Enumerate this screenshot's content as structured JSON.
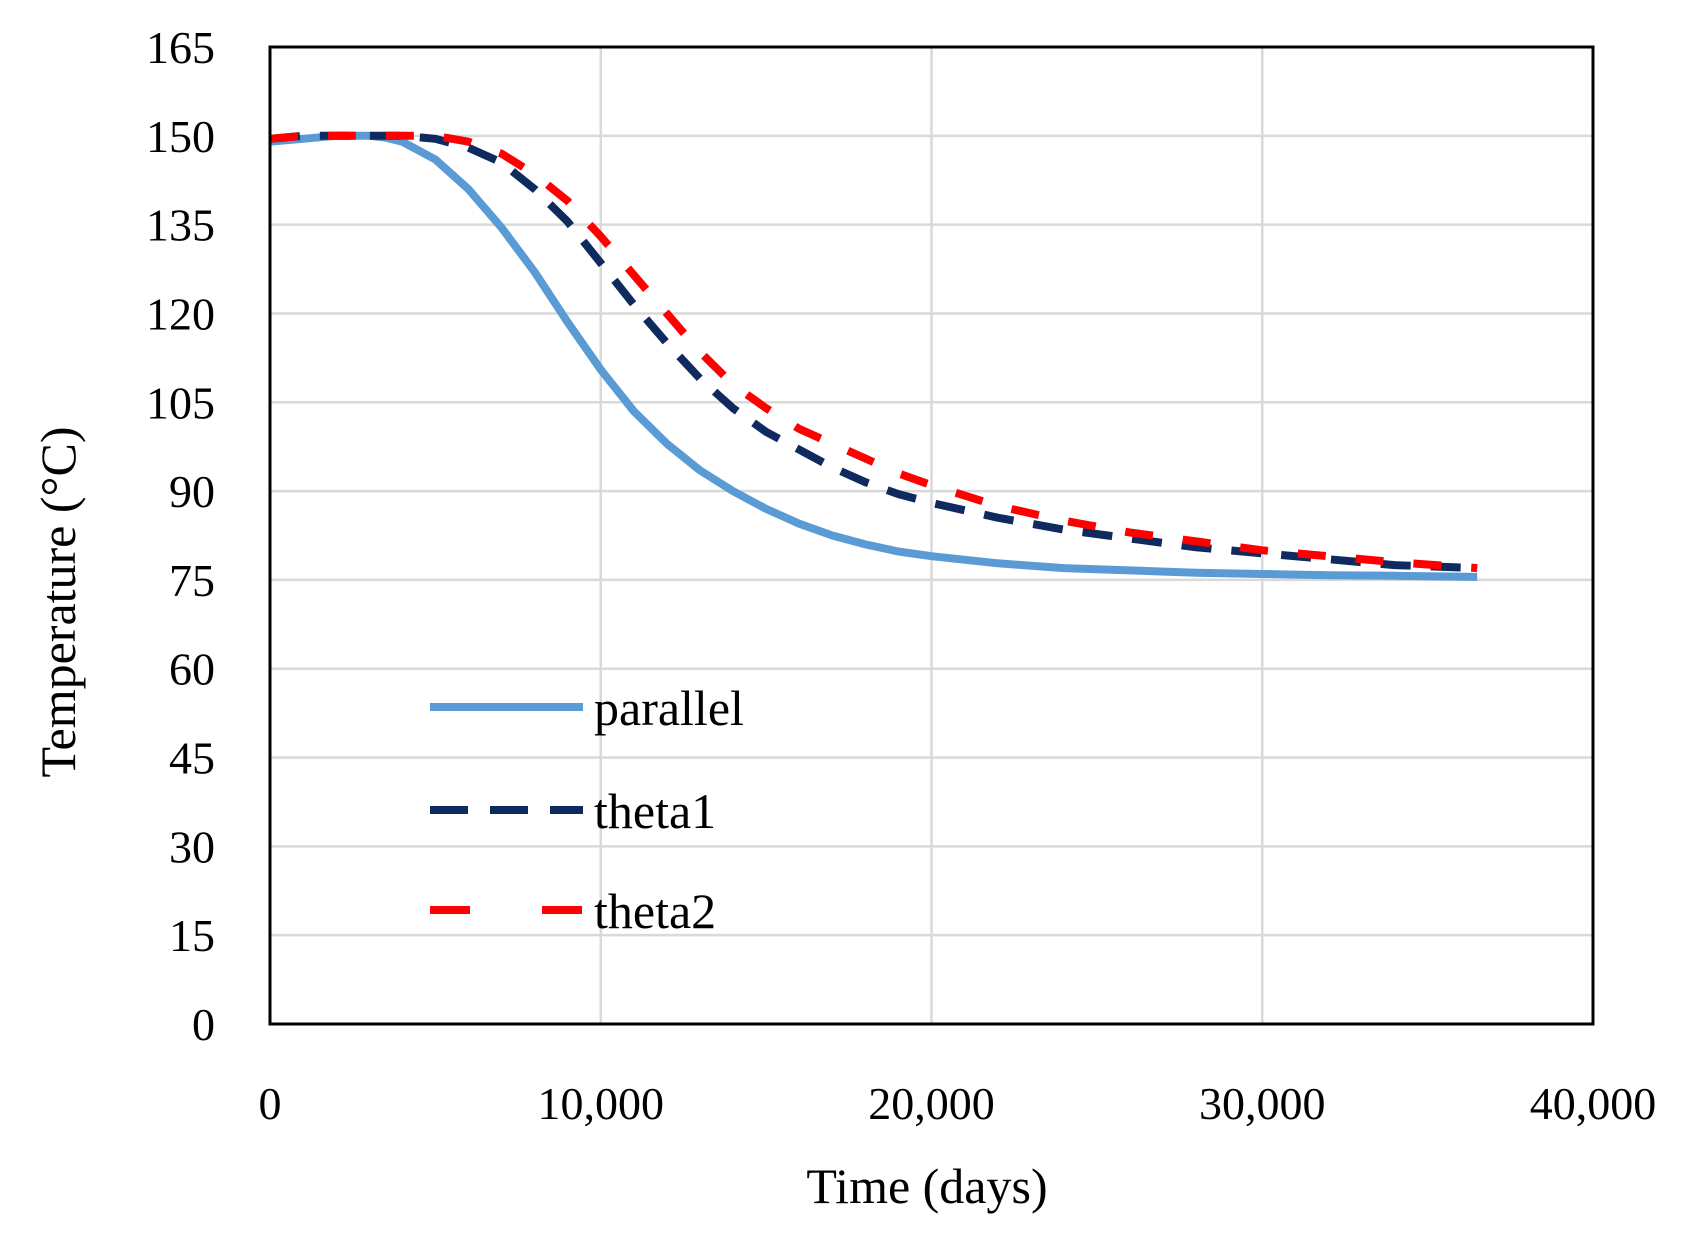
{
  "chart_data": {
    "type": "line",
    "title": "",
    "xlabel": "Time (days)",
    "ylabel": "Temperature (°C)",
    "xlim": [
      0,
      40000
    ],
    "ylim": [
      0,
      165
    ],
    "xticks": [
      0,
      10000,
      20000,
      30000,
      40000
    ],
    "xtick_labels": [
      "0",
      "10,000",
      "20,000",
      "30,000",
      "40,000"
    ],
    "yticks": [
      0,
      15,
      30,
      45,
      60,
      75,
      90,
      105,
      120,
      135,
      150,
      165
    ],
    "ytick_labels": [
      "0",
      "15",
      "30",
      "45",
      "60",
      "75",
      "90",
      "105",
      "120",
      "135",
      "150",
      "165"
    ],
    "grid": true,
    "legend_position": "lower-left",
    "series": [
      {
        "name": "parallel",
        "color": "#5b9bd5",
        "style": "solid",
        "x": [
          0,
          1000,
          2000,
          3000,
          3500,
          4000,
          5000,
          6000,
          7000,
          8000,
          9000,
          10000,
          11000,
          12000,
          13000,
          14000,
          15000,
          16000,
          17000,
          18000,
          19000,
          20000,
          22000,
          24000,
          26000,
          28000,
          30000,
          32000,
          34000,
          36500
        ],
        "y": [
          149,
          149.5,
          150,
          150,
          149.7,
          149,
          146,
          141,
          134.5,
          127,
          118.5,
          110.5,
          103.5,
          98,
          93.5,
          90,
          87,
          84.5,
          82.5,
          81,
          79.8,
          79,
          77.8,
          77,
          76.6,
          76.2,
          76,
          75.8,
          75.7,
          75.5
        ]
      },
      {
        "name": "theta1",
        "color": "#0f2a5f",
        "style": "dash",
        "x": [
          0,
          1000,
          2000,
          3000,
          4000,
          5000,
          6000,
          7000,
          8000,
          9000,
          10000,
          11000,
          12000,
          13000,
          14000,
          15000,
          16000,
          17000,
          18000,
          19000,
          20000,
          22000,
          24000,
          26000,
          28000,
          30000,
          32000,
          34000,
          36500
        ],
        "y": [
          149.5,
          150,
          150,
          150,
          150,
          149.5,
          148,
          145.5,
          141,
          135.5,
          128.5,
          121.5,
          115,
          109,
          104,
          100,
          97,
          94,
          91.5,
          89.5,
          88,
          85.5,
          83.5,
          82,
          80.5,
          79.5,
          78.5,
          77.5,
          77
        ]
      },
      {
        "name": "theta2",
        "color": "#ff0000",
        "style": "dash-sparse",
        "x": [
          0,
          1000,
          2000,
          3000,
          4000,
          5000,
          6000,
          7000,
          8000,
          9000,
          10000,
          11000,
          12000,
          13000,
          14000,
          15000,
          16000,
          17000,
          18000,
          19000,
          20000,
          22000,
          24000,
          26000,
          28000,
          30000,
          32000,
          34000,
          36500
        ],
        "y": [
          149.5,
          150,
          150,
          150,
          150,
          150,
          149,
          147,
          143.5,
          139,
          133,
          126.5,
          120,
          113.5,
          108,
          104,
          100.5,
          98,
          95.5,
          93,
          91,
          87.5,
          85,
          83,
          81.5,
          80,
          79,
          78,
          77
        ]
      }
    ]
  }
}
